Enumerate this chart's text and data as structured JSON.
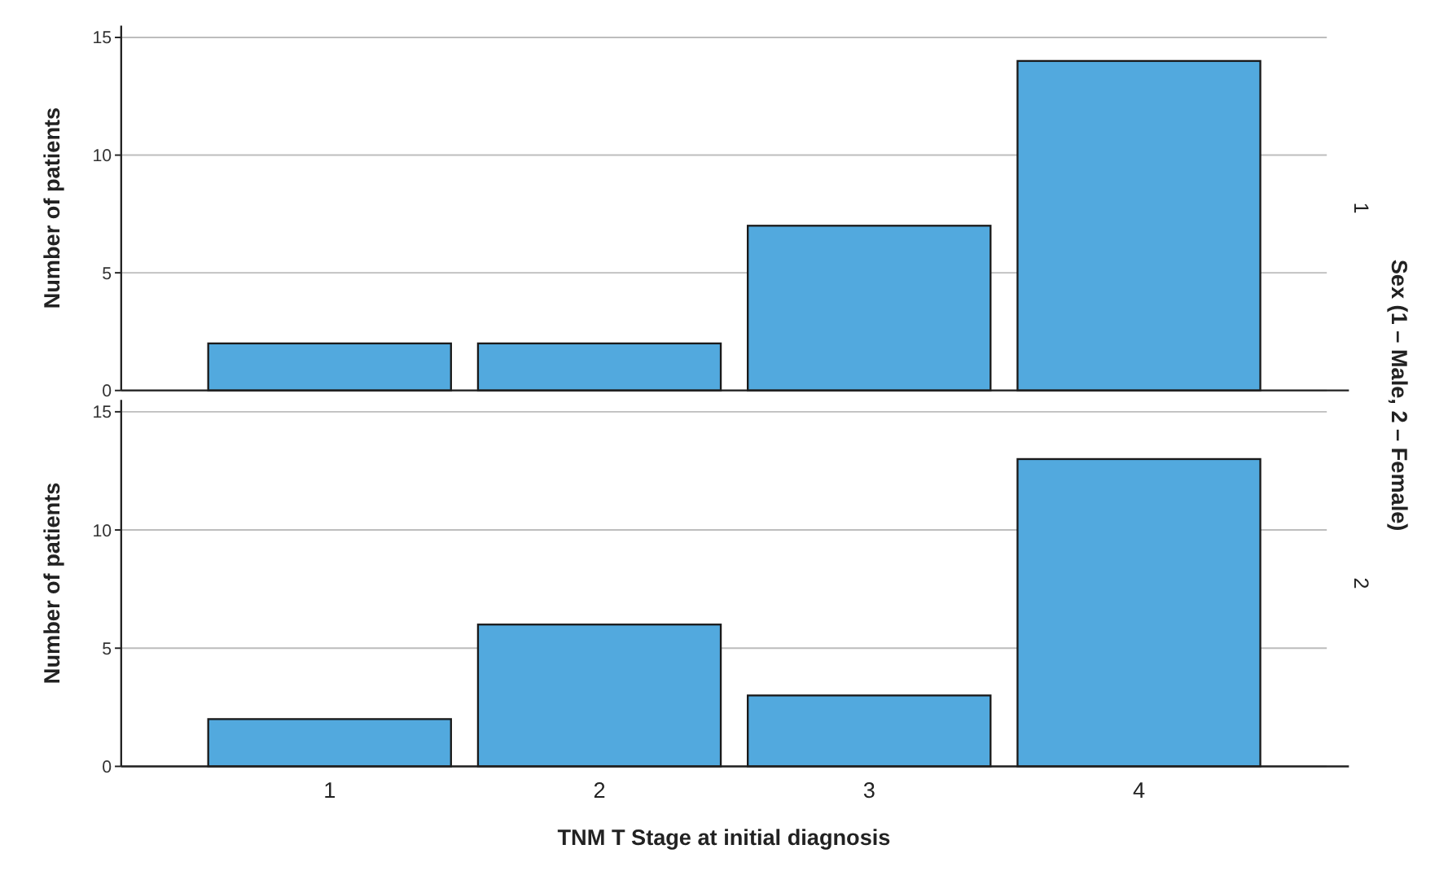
{
  "chart_data": [
    {
      "type": "bar",
      "y2label": "1",
      "ylabel": "Number of patients",
      "categories": [
        null,
        null,
        null,
        null
      ],
      "values": [
        2,
        2,
        7,
        14
      ],
      "color": "#52a9de",
      "ylim": [
        0,
        15.5
      ],
      "yticks": [
        0,
        5,
        10,
        15
      ],
      "grid": "y",
      "annotations": [
        "Sex (1 – Male, 2 – Female)"
      ]
    },
    {
      "type": "bar",
      "y2label": "2",
      "ylabel": "Number of patients",
      "xlabel": "TNM T Stage at initial diagnosis",
      "categories": [
        "1",
        "2",
        "3",
        "4"
      ],
      "values": [
        2,
        6,
        3,
        13
      ],
      "color": "#52a9de",
      "ylim": [
        0,
        15.5
      ],
      "yticks": [
        0,
        5,
        10,
        15
      ],
      "grid": "y"
    }
  ]
}
